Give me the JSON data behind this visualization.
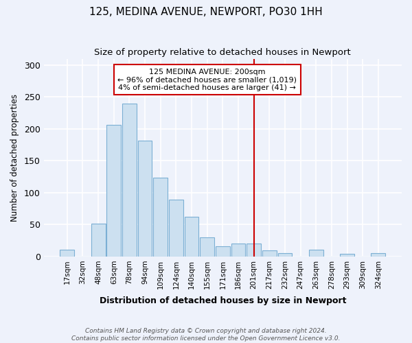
{
  "title": "125, MEDINA AVENUE, NEWPORT, PO30 1HH",
  "subtitle": "Size of property relative to detached houses in Newport",
  "xlabel": "Distribution of detached houses by size in Newport",
  "ylabel": "Number of detached properties",
  "bar_labels": [
    "17sqm",
    "32sqm",
    "48sqm",
    "63sqm",
    "78sqm",
    "94sqm",
    "109sqm",
    "124sqm",
    "140sqm",
    "155sqm",
    "171sqm",
    "186sqm",
    "201sqm",
    "217sqm",
    "232sqm",
    "247sqm",
    "263sqm",
    "278sqm",
    "293sqm",
    "309sqm",
    "324sqm"
  ],
  "bar_heights": [
    11,
    0,
    52,
    206,
    240,
    182,
    123,
    89,
    62,
    30,
    16,
    20,
    20,
    10,
    5,
    0,
    11,
    0,
    4,
    0,
    5
  ],
  "bar_color": "#cce0f0",
  "bar_edge_color": "#7bafd4",
  "vline_x_index": 12,
  "vline_color": "#cc0000",
  "annotation_title": "125 MEDINA AVENUE: 200sqm",
  "annotation_line1": "← 96% of detached houses are smaller (1,019)",
  "annotation_line2": "4% of semi-detached houses are larger (41) →",
  "annotation_box_color": "#ffffff",
  "annotation_box_edge": "#cc0000",
  "ylim": [
    0,
    310
  ],
  "yticks": [
    0,
    50,
    100,
    150,
    200,
    250,
    300
  ],
  "footer_line1": "Contains HM Land Registry data © Crown copyright and database right 2024.",
  "footer_line2": "Contains public sector information licensed under the Open Government Licence v3.0.",
  "bg_color": "#eef2fb",
  "plot_bg_color": "#eef2fb"
}
